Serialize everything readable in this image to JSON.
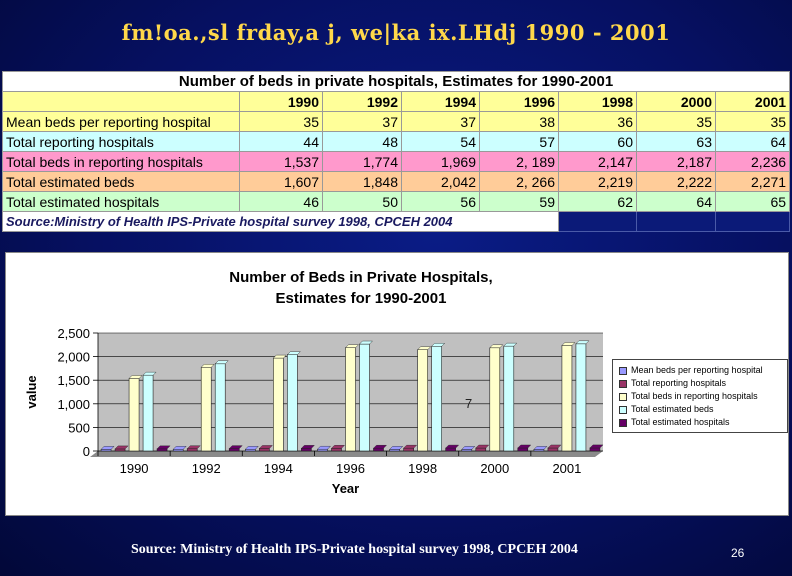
{
  "slide": {
    "title": "fm!oa.,sl frday,a j, we|ka ix.LHdj 1990 - 2001",
    "footer_source": "Source: Ministry of Health IPS-Private hospital survey 1998, CPCEH 2004",
    "page_number": "26"
  },
  "table": {
    "title": "Number of beds in private hospitals, Estimates for 1990-2001",
    "years": [
      "1990",
      "1992",
      "1994",
      "1996",
      "1998",
      "2000",
      "2001"
    ],
    "rows": [
      {
        "label": "Mean beds per reporting hospital",
        "values": [
          "35",
          "37",
          "37",
          "38",
          "36",
          "35",
          "35"
        ]
      },
      {
        "label": "Total reporting hospitals",
        "values": [
          "44",
          "48",
          "54",
          "57",
          "60",
          "63",
          "64"
        ]
      },
      {
        "label": "Total beds in reporting hospitals",
        "values": [
          "1,537",
          "1,774",
          "1,969",
          "2, 189",
          "2,147",
          "2,187",
          "2,236"
        ]
      },
      {
        "label": "Total estimated beds",
        "values": [
          "1,607",
          "1,848",
          "2,042",
          "2, 266",
          "2,219",
          "2,222",
          "2,271"
        ]
      },
      {
        "label": "Total estimated hospitals",
        "values": [
          "46",
          "50",
          "56",
          "59",
          "62",
          "64",
          "65"
        ]
      }
    ],
    "source": "Source:Ministry of Health IPS-Private hospital survey 1998, CPCEH 2004"
  },
  "chart_data": {
    "type": "bar",
    "title_line1": "Number of Beds in Private Hospitals,",
    "title_line2": "Estimates for 1990-2001",
    "xlabel": "Year",
    "ylabel": "value",
    "ylim": [
      0,
      2500
    ],
    "yticks": [
      "0",
      "500",
      "1,000",
      "1,500",
      "2,000",
      "2,500"
    ],
    "categories": [
      "1990",
      "1992",
      "1994",
      "1996",
      "1998",
      "2000",
      "2001"
    ],
    "series": [
      {
        "name": "Mean beds per reporting hospital",
        "color": "#9999ff",
        "values": [
          35,
          37,
          37,
          38,
          36,
          35,
          35
        ]
      },
      {
        "name": "Total reporting hospitals",
        "color": "#993366",
        "values": [
          44,
          48,
          54,
          57,
          60,
          63,
          64
        ]
      },
      {
        "name": "Total beds in reporting hospitals",
        "color": "#ffffcc",
        "values": [
          1537,
          1774,
          1969,
          2189,
          2147,
          2187,
          2236
        ]
      },
      {
        "name": "Total estimated beds",
        "color": "#ccffff",
        "values": [
          1607,
          1848,
          2042,
          2266,
          2219,
          2222,
          2271
        ]
      },
      {
        "name": "Total estimated hospitals",
        "color": "#660066",
        "values": [
          46,
          50,
          56,
          59,
          62,
          64,
          65
        ]
      }
    ],
    "annotation": "7",
    "grid": true,
    "legend_position": "right"
  }
}
